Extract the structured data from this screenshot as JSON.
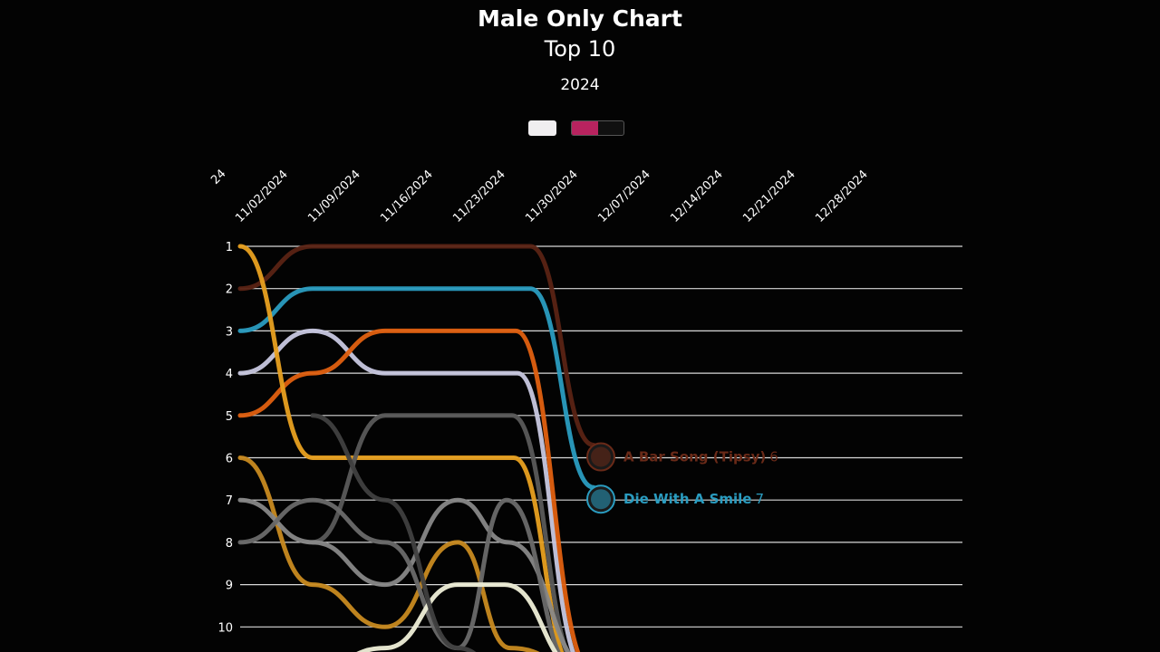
{
  "header": {
    "title": "Male Only Chart",
    "subtitle": "Top 10",
    "year": "2024"
  },
  "toggle": {
    "progress": 0.5,
    "accent": "#b8235f"
  },
  "chart_data": {
    "type": "line",
    "y_axis": {
      "labels": [
        "1",
        "2",
        "3",
        "4",
        "5",
        "6",
        "7",
        "8",
        "9",
        "10"
      ],
      "range": [
        1,
        10
      ],
      "inverted": true
    },
    "x_axis": {
      "partial_first_label": "24",
      "tick_labels": [
        "11/02/2024",
        "11/09/2024",
        "11/16/2024",
        "11/23/2024",
        "11/30/2024",
        "12/07/2024",
        "12/14/2024",
        "12/21/2024",
        "12/28/2024"
      ]
    },
    "grid": true,
    "series": [
      {
        "color": "#5a2314",
        "x": [
          "11/02/2024",
          "11/09/2024",
          "11/16/2024",
          "11/23/2024",
          "11/30/2024",
          "12/07/2024"
        ],
        "values": [
          2,
          1,
          1,
          1,
          1,
          5.7
        ]
      },
      {
        "color": "#2a9cc0",
        "x": [
          "11/02/2024",
          "11/09/2024",
          "11/16/2024",
          "11/23/2024",
          "11/30/2024",
          "12/07/2024"
        ],
        "values": [
          3,
          2,
          2,
          2,
          2,
          6.7
        ]
      },
      {
        "color": "#c8c8e0",
        "x": [
          "11/02/2024",
          "11/09/2024",
          "11/16/2024",
          "11/23/2024",
          "11/30/2024"
        ],
        "values": [
          4,
          3,
          4,
          4,
          4
        ]
      },
      {
        "color": "#e06010",
        "x": [
          "11/02/2024",
          "11/09/2024",
          "11/16/2024",
          "11/23/2024",
          "11/30/2024"
        ],
        "values": [
          5,
          4,
          3,
          3,
          3
        ]
      },
      {
        "color": "#e8a020",
        "x": [
          "11/02/2024",
          "11/09/2024",
          "11/16/2024",
          "11/23/2024",
          "11/30/2024"
        ],
        "values": [
          1,
          6,
          6,
          6,
          6
        ]
      },
      {
        "color": "#5a5a5a",
        "x": [
          "11/09/2024",
          "11/16/2024",
          "11/23/2024",
          "11/30/2024"
        ],
        "values": [
          8,
          5,
          5,
          5
        ]
      },
      {
        "color": "#c88a20",
        "x": [
          "11/02/2024",
          "11/09/2024",
          "11/16/2024",
          "11/23/2024",
          "11/30/2024"
        ],
        "values": [
          6,
          9,
          10,
          8,
          10.5
        ]
      },
      {
        "color": "#888888",
        "x": [
          "11/02/2024",
          "11/09/2024",
          "11/16/2024",
          "11/23/2024",
          "11/30/2024"
        ],
        "values": [
          7,
          8,
          9,
          7,
          8
        ]
      },
      {
        "color": "#6a6a6a",
        "x": [
          "11/02/2024",
          "11/09/2024",
          "11/16/2024",
          "11/23/2024",
          "11/30/2024"
        ],
        "values": [
          8,
          7,
          8,
          10.5,
          7
        ]
      },
      {
        "color": "#efefd8",
        "x": [
          "11/09/2024",
          "11/16/2024",
          "11/23/2024",
          "11/30/2024"
        ],
        "values": [
          11,
          10.5,
          9,
          9
        ]
      },
      {
        "color": "#404040",
        "x": [
          "11/09/2024",
          "11/16/2024",
          "11/23/2024",
          "11/30/2024"
        ],
        "values": [
          5,
          7,
          10.5,
          11
        ]
      }
    ],
    "labels": [
      {
        "name": "A Bar Song (Tipsy)",
        "rank": "6",
        "color": "#6a2a18"
      },
      {
        "name": "Die With A Smile",
        "rank": "7",
        "color": "#2a9cc0"
      }
    ]
  }
}
